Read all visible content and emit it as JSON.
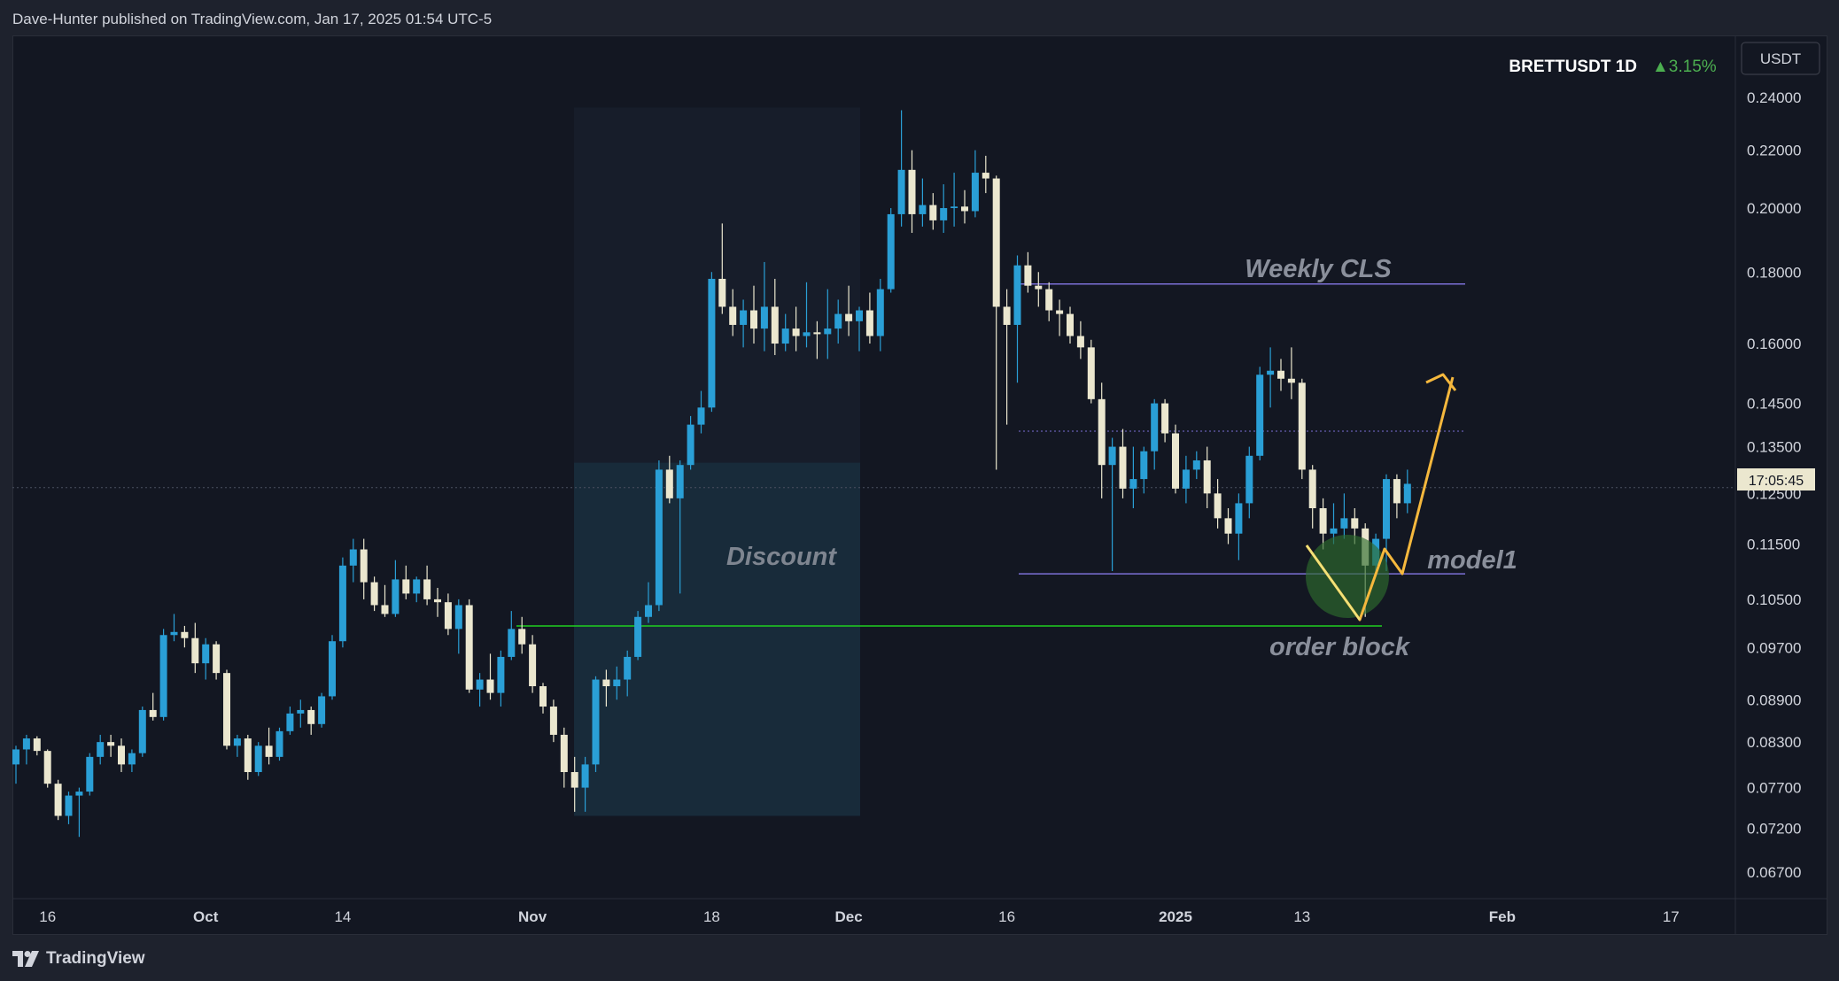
{
  "header": {
    "published_text": "Dave-Hunter published on TradingView.com, Jan 17, 2025 01:54 UTC-5"
  },
  "footer": {
    "brand": "TradingView",
    "brand_icon": "tradingview-logo-icon"
  },
  "legend": {
    "symbol": "BRETTUSDT 1D",
    "change": "▲3.15%",
    "currency_button": "USDT",
    "countdown": "17:05:45"
  },
  "annotations": {
    "discount": "Discount",
    "weekly_cls": "Weekly CLS",
    "model1": "model1",
    "order_block": "order block"
  },
  "colors": {
    "background": "#131722",
    "bull_candle": "#2a9fd6",
    "bear_candle": "#ebe7cf",
    "zone_fill": "#1e3d4f",
    "projection": "#f5b83d",
    "support_line": "#1fcf1f",
    "level_line": "#7b6fd6",
    "order_block_circle": "#2e6b2e",
    "change_up": "#4caf50"
  },
  "chart_data": {
    "type": "candlestick",
    "title": "BRETTUSDT 1D",
    "y_scale": "log",
    "ylim": [
      0.063,
      0.25
    ],
    "y_ticks": [
      "0.24000",
      "0.22000",
      "0.20000",
      "0.18000",
      "0.16000",
      "0.14500",
      "0.13500",
      "0.12500",
      "0.11500",
      "0.10500",
      "0.09700",
      "0.08900",
      "0.08300",
      "0.07700",
      "0.07200",
      "0.06700"
    ],
    "x_ticks": [
      "16",
      "Oct",
      "14",
      "Nov",
      "18",
      "Dec",
      "16",
      "2025",
      "13",
      "Feb",
      "17"
    ],
    "x_tick_bold": [
      "Oct",
      "Nov",
      "Dec",
      "2025",
      "Feb"
    ],
    "start_date": "2024-09-13",
    "candles": [
      {
        "o": 0.08,
        "h": 0.0825,
        "l": 0.0775,
        "c": 0.082
      },
      {
        "o": 0.082,
        "h": 0.084,
        "l": 0.08,
        "c": 0.0835
      },
      {
        "o": 0.0835,
        "h": 0.0838,
        "l": 0.0812,
        "c": 0.0818
      },
      {
        "o": 0.0818,
        "h": 0.082,
        "l": 0.077,
        "c": 0.0775
      },
      {
        "o": 0.0775,
        "h": 0.078,
        "l": 0.073,
        "c": 0.0735
      },
      {
        "o": 0.0735,
        "h": 0.0765,
        "l": 0.0725,
        "c": 0.076
      },
      {
        "o": 0.076,
        "h": 0.077,
        "l": 0.071,
        "c": 0.0765
      },
      {
        "o": 0.0765,
        "h": 0.0815,
        "l": 0.076,
        "c": 0.081
      },
      {
        "o": 0.081,
        "h": 0.084,
        "l": 0.08,
        "c": 0.083
      },
      {
        "o": 0.083,
        "h": 0.084,
        "l": 0.081,
        "c": 0.0825
      },
      {
        "o": 0.0825,
        "h": 0.0835,
        "l": 0.079,
        "c": 0.08
      },
      {
        "o": 0.08,
        "h": 0.082,
        "l": 0.079,
        "c": 0.0815
      },
      {
        "o": 0.0815,
        "h": 0.088,
        "l": 0.081,
        "c": 0.0875
      },
      {
        "o": 0.0875,
        "h": 0.09,
        "l": 0.086,
        "c": 0.0865
      },
      {
        "o": 0.0865,
        "h": 0.1,
        "l": 0.086,
        "c": 0.099
      },
      {
        "o": 0.099,
        "h": 0.1025,
        "l": 0.098,
        "c": 0.0995
      },
      {
        "o": 0.0995,
        "h": 0.1005,
        "l": 0.097,
        "c": 0.0985
      },
      {
        "o": 0.0985,
        "h": 0.101,
        "l": 0.093,
        "c": 0.0945
      },
      {
        "o": 0.0945,
        "h": 0.0985,
        "l": 0.092,
        "c": 0.0975
      },
      {
        "o": 0.0975,
        "h": 0.098,
        "l": 0.092,
        "c": 0.093
      },
      {
        "o": 0.093,
        "h": 0.0935,
        "l": 0.082,
        "c": 0.0825
      },
      {
        "o": 0.0825,
        "h": 0.084,
        "l": 0.081,
        "c": 0.0835
      },
      {
        "o": 0.0835,
        "h": 0.084,
        "l": 0.078,
        "c": 0.079
      },
      {
        "o": 0.079,
        "h": 0.083,
        "l": 0.0785,
        "c": 0.0825
      },
      {
        "o": 0.0825,
        "h": 0.085,
        "l": 0.08,
        "c": 0.081
      },
      {
        "o": 0.081,
        "h": 0.085,
        "l": 0.0805,
        "c": 0.0845
      },
      {
        "o": 0.0845,
        "h": 0.088,
        "l": 0.084,
        "c": 0.087
      },
      {
        "o": 0.087,
        "h": 0.089,
        "l": 0.085,
        "c": 0.0875
      },
      {
        "o": 0.0875,
        "h": 0.088,
        "l": 0.084,
        "c": 0.0855
      },
      {
        "o": 0.0855,
        "h": 0.09,
        "l": 0.085,
        "c": 0.0895
      },
      {
        "o": 0.0895,
        "h": 0.099,
        "l": 0.089,
        "c": 0.098
      },
      {
        "o": 0.098,
        "h": 0.1125,
        "l": 0.097,
        "c": 0.111
      },
      {
        "o": 0.111,
        "h": 0.116,
        "l": 0.108,
        "c": 0.114
      },
      {
        "o": 0.114,
        "h": 0.116,
        "l": 0.105,
        "c": 0.108
      },
      {
        "o": 0.108,
        "h": 0.109,
        "l": 0.103,
        "c": 0.104
      },
      {
        "o": 0.104,
        "h": 0.1075,
        "l": 0.102,
        "c": 0.1025
      },
      {
        "o": 0.1025,
        "h": 0.112,
        "l": 0.102,
        "c": 0.1085
      },
      {
        "o": 0.1085,
        "h": 0.111,
        "l": 0.105,
        "c": 0.106
      },
      {
        "o": 0.106,
        "h": 0.109,
        "l": 0.1045,
        "c": 0.1085
      },
      {
        "o": 0.1085,
        "h": 0.111,
        "l": 0.104,
        "c": 0.105
      },
      {
        "o": 0.105,
        "h": 0.107,
        "l": 0.102,
        "c": 0.1045
      },
      {
        "o": 0.1045,
        "h": 0.106,
        "l": 0.099,
        "c": 0.1
      },
      {
        "o": 0.1,
        "h": 0.105,
        "l": 0.096,
        "c": 0.104
      },
      {
        "o": 0.104,
        "h": 0.105,
        "l": 0.09,
        "c": 0.0905
      },
      {
        "o": 0.0905,
        "h": 0.093,
        "l": 0.088,
        "c": 0.092
      },
      {
        "o": 0.092,
        "h": 0.096,
        "l": 0.089,
        "c": 0.09
      },
      {
        "o": 0.09,
        "h": 0.0965,
        "l": 0.088,
        "c": 0.0955
      },
      {
        "o": 0.0955,
        "h": 0.103,
        "l": 0.095,
        "c": 0.1
      },
      {
        "o": 0.1,
        "h": 0.102,
        "l": 0.096,
        "c": 0.0975
      },
      {
        "o": 0.0975,
        "h": 0.099,
        "l": 0.09,
        "c": 0.091
      },
      {
        "o": 0.091,
        "h": 0.0915,
        "l": 0.087,
        "c": 0.088
      },
      {
        "o": 0.088,
        "h": 0.089,
        "l": 0.083,
        "c": 0.084
      },
      {
        "o": 0.084,
        "h": 0.085,
        "l": 0.077,
        "c": 0.079
      },
      {
        "o": 0.079,
        "h": 0.081,
        "l": 0.074,
        "c": 0.077
      },
      {
        "o": 0.077,
        "h": 0.081,
        "l": 0.074,
        "c": 0.08
      },
      {
        "o": 0.08,
        "h": 0.0925,
        "l": 0.079,
        "c": 0.092
      },
      {
        "o": 0.092,
        "h": 0.0935,
        "l": 0.088,
        "c": 0.091
      },
      {
        "o": 0.091,
        "h": 0.094,
        "l": 0.089,
        "c": 0.092
      },
      {
        "o": 0.092,
        "h": 0.0965,
        "l": 0.0895,
        "c": 0.0955
      },
      {
        "o": 0.0955,
        "h": 0.103,
        "l": 0.095,
        "c": 0.102
      },
      {
        "o": 0.102,
        "h": 0.108,
        "l": 0.101,
        "c": 0.104
      },
      {
        "o": 0.104,
        "h": 0.132,
        "l": 0.103,
        "c": 0.13
      },
      {
        "o": 0.13,
        "h": 0.133,
        "l": 0.123,
        "c": 0.124
      },
      {
        "o": 0.124,
        "h": 0.132,
        "l": 0.106,
        "c": 0.131
      },
      {
        "o": 0.131,
        "h": 0.142,
        "l": 0.13,
        "c": 0.14
      },
      {
        "o": 0.14,
        "h": 0.148,
        "l": 0.138,
        "c": 0.144
      },
      {
        "o": 0.144,
        "h": 0.18,
        "l": 0.143,
        "c": 0.178
      },
      {
        "o": 0.178,
        "h": 0.195,
        "l": 0.168,
        "c": 0.17
      },
      {
        "o": 0.17,
        "h": 0.175,
        "l": 0.162,
        "c": 0.165
      },
      {
        "o": 0.165,
        "h": 0.172,
        "l": 0.159,
        "c": 0.169
      },
      {
        "o": 0.169,
        "h": 0.176,
        "l": 0.16,
        "c": 0.164
      },
      {
        "o": 0.164,
        "h": 0.183,
        "l": 0.158,
        "c": 0.17
      },
      {
        "o": 0.17,
        "h": 0.178,
        "l": 0.157,
        "c": 0.16
      },
      {
        "o": 0.16,
        "h": 0.168,
        "l": 0.158,
        "c": 0.164
      },
      {
        "o": 0.164,
        "h": 0.17,
        "l": 0.158,
        "c": 0.162
      },
      {
        "o": 0.162,
        "h": 0.177,
        "l": 0.159,
        "c": 0.163
      },
      {
        "o": 0.163,
        "h": 0.166,
        "l": 0.156,
        "c": 0.1625
      },
      {
        "o": 0.1625,
        "h": 0.175,
        "l": 0.156,
        "c": 0.164
      },
      {
        "o": 0.164,
        "h": 0.172,
        "l": 0.16,
        "c": 0.168
      },
      {
        "o": 0.168,
        "h": 0.176,
        "l": 0.162,
        "c": 0.166
      },
      {
        "o": 0.166,
        "h": 0.17,
        "l": 0.158,
        "c": 0.169
      },
      {
        "o": 0.169,
        "h": 0.174,
        "l": 0.16,
        "c": 0.162
      },
      {
        "o": 0.162,
        "h": 0.178,
        "l": 0.158,
        "c": 0.175
      },
      {
        "o": 0.175,
        "h": 0.2,
        "l": 0.174,
        "c": 0.198
      },
      {
        "o": 0.198,
        "h": 0.235,
        "l": 0.194,
        "c": 0.213
      },
      {
        "o": 0.213,
        "h": 0.22,
        "l": 0.192,
        "c": 0.198
      },
      {
        "o": 0.198,
        "h": 0.21,
        "l": 0.194,
        "c": 0.201
      },
      {
        "o": 0.201,
        "h": 0.205,
        "l": 0.193,
        "c": 0.196
      },
      {
        "o": 0.196,
        "h": 0.208,
        "l": 0.192,
        "c": 0.2
      },
      {
        "o": 0.2,
        "h": 0.212,
        "l": 0.194,
        "c": 0.2005
      },
      {
        "o": 0.2005,
        "h": 0.206,
        "l": 0.195,
        "c": 0.199
      },
      {
        "o": 0.199,
        "h": 0.22,
        "l": 0.197,
        "c": 0.212
      },
      {
        "o": 0.212,
        "h": 0.218,
        "l": 0.205,
        "c": 0.21
      },
      {
        "o": 0.21,
        "h": 0.211,
        "l": 0.13,
        "c": 0.17
      },
      {
        "o": 0.17,
        "h": 0.175,
        "l": 0.14,
        "c": 0.165
      },
      {
        "o": 0.165,
        "h": 0.185,
        "l": 0.15,
        "c": 0.182
      },
      {
        "o": 0.182,
        "h": 0.186,
        "l": 0.174,
        "c": 0.176
      },
      {
        "o": 0.176,
        "h": 0.18,
        "l": 0.17,
        "c": 0.175
      },
      {
        "o": 0.175,
        "h": 0.177,
        "l": 0.166,
        "c": 0.169
      },
      {
        "o": 0.169,
        "h": 0.172,
        "l": 0.162,
        "c": 0.168
      },
      {
        "o": 0.168,
        "h": 0.17,
        "l": 0.16,
        "c": 0.162
      },
      {
        "o": 0.162,
        "h": 0.166,
        "l": 0.156,
        "c": 0.159
      },
      {
        "o": 0.159,
        "h": 0.161,
        "l": 0.145,
        "c": 0.146
      },
      {
        "o": 0.146,
        "h": 0.15,
        "l": 0.124,
        "c": 0.131
      },
      {
        "o": 0.131,
        "h": 0.137,
        "l": 0.11,
        "c": 0.135
      },
      {
        "o": 0.135,
        "h": 0.139,
        "l": 0.124,
        "c": 0.126
      },
      {
        "o": 0.126,
        "h": 0.135,
        "l": 0.122,
        "c": 0.128
      },
      {
        "o": 0.128,
        "h": 0.135,
        "l": 0.125,
        "c": 0.134
      },
      {
        "o": 0.134,
        "h": 0.146,
        "l": 0.13,
        "c": 0.145
      },
      {
        "o": 0.145,
        "h": 0.146,
        "l": 0.136,
        "c": 0.138
      },
      {
        "o": 0.138,
        "h": 0.14,
        "l": 0.125,
        "c": 0.126
      },
      {
        "o": 0.126,
        "h": 0.133,
        "l": 0.123,
        "c": 0.13
      },
      {
        "o": 0.13,
        "h": 0.134,
        "l": 0.128,
        "c": 0.132
      },
      {
        "o": 0.132,
        "h": 0.135,
        "l": 0.122,
        "c": 0.125
      },
      {
        "o": 0.125,
        "h": 0.128,
        "l": 0.118,
        "c": 0.12
      },
      {
        "o": 0.12,
        "h": 0.122,
        "l": 0.115,
        "c": 0.117
      },
      {
        "o": 0.117,
        "h": 0.125,
        "l": 0.112,
        "c": 0.123
      },
      {
        "o": 0.123,
        "h": 0.135,
        "l": 0.12,
        "c": 0.133
      },
      {
        "o": 0.133,
        "h": 0.154,
        "l": 0.132,
        "c": 0.152
      },
      {
        "o": 0.152,
        "h": 0.159,
        "l": 0.144,
        "c": 0.153
      },
      {
        "o": 0.153,
        "h": 0.156,
        "l": 0.148,
        "c": 0.151
      },
      {
        "o": 0.151,
        "h": 0.159,
        "l": 0.146,
        "c": 0.15
      },
      {
        "o": 0.15,
        "h": 0.151,
        "l": 0.128,
        "c": 0.13
      },
      {
        "o": 0.13,
        "h": 0.131,
        "l": 0.118,
        "c": 0.122
      },
      {
        "o": 0.122,
        "h": 0.124,
        "l": 0.114,
        "c": 0.117
      },
      {
        "o": 0.117,
        "h": 0.123,
        "l": 0.115,
        "c": 0.118
      },
      {
        "o": 0.118,
        "h": 0.125,
        "l": 0.116,
        "c": 0.12
      },
      {
        "o": 0.12,
        "h": 0.122,
        "l": 0.115,
        "c": 0.118
      },
      {
        "o": 0.118,
        "h": 0.119,
        "l": 0.102,
        "c": 0.111
      },
      {
        "o": 0.111,
        "h": 0.117,
        "l": 0.109,
        "c": 0.116
      },
      {
        "o": 0.116,
        "h": 0.129,
        "l": 0.11,
        "c": 0.128
      },
      {
        "o": 0.128,
        "h": 0.129,
        "l": 0.12,
        "c": 0.123
      },
      {
        "o": 0.123,
        "h": 0.13,
        "l": 0.121,
        "c": 0.127
      }
    ]
  }
}
